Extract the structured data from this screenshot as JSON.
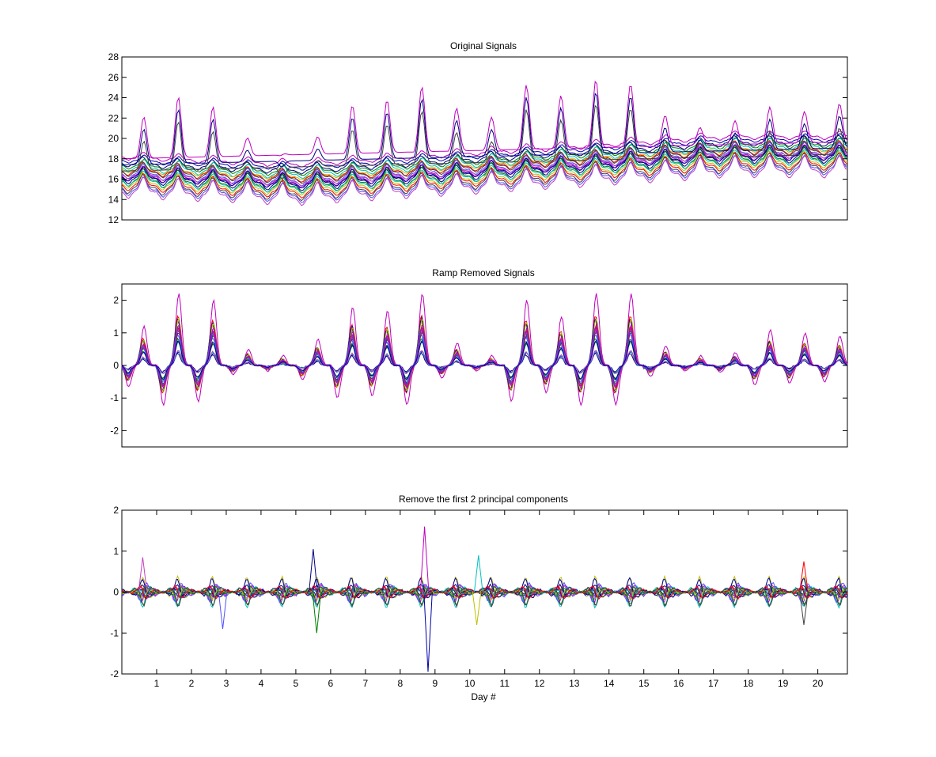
{
  "chart_data": [
    {
      "type": "line",
      "title": "Original Signals",
      "xlabel": "",
      "ylabel": "",
      "xlim": [
        0,
        20.85
      ],
      "ylim": [
        12,
        28
      ],
      "yticks": [
        12,
        14,
        16,
        18,
        20,
        22,
        24,
        26,
        28
      ],
      "xticks": [],
      "grid": false,
      "legend": "none",
      "series_colors": [
        "#bf00bf",
        "#0000aa",
        "#00007f",
        "#008000",
        "#00bfbf",
        "#bfbf00",
        "#ff0000",
        "#404040",
        "#5050ff",
        "#bf40bf"
      ],
      "base_levels": [
        18.2,
        17.9,
        17.6,
        17.4,
        17.2,
        17.0,
        16.9,
        16.8,
        16.6,
        16.5,
        16.4,
        16.3,
        16.2,
        16.0,
        15.9,
        15.7,
        15.5,
        15.3,
        15.1,
        14.9
      ],
      "peak_envelope": {
        "x": [
          0.1,
          0.7,
          1.7,
          2.7,
          3.4,
          4.5,
          5.7,
          6.7,
          7.7,
          8.7,
          9.6,
          10.6,
          11.7,
          12.7,
          13.7,
          14.7,
          15.7,
          16.7,
          17.7,
          18.7,
          19.7,
          20.7
        ],
        "y": [
          19.5,
          22.5,
          24.2,
          23.0,
          20.5,
          18.2,
          20.3,
          23.5,
          23.8,
          25.2,
          23.0,
          22.0,
          25.5,
          24.1,
          25.9,
          25.3,
          22.0,
          21.0,
          21.8,
          23.2,
          22.6,
          23.5
        ]
      }
    },
    {
      "type": "line",
      "title": "Ramp Removed Signals",
      "xlabel": "",
      "ylabel": "",
      "xlim": [
        0,
        20.85
      ],
      "ylim": [
        -2.5,
        2.5
      ],
      "yticks": [
        -2,
        -1,
        0,
        1,
        2
      ],
      "xticks": [],
      "grid": false,
      "legend": "none",
      "series_colors": [
        "#bf00bf",
        "#0000aa",
        "#00007f",
        "#008000",
        "#00bfbf",
        "#bfbf00",
        "#ff0000",
        "#404040",
        "#5050ff",
        "#bf40bf"
      ],
      "cycle_amplitudes": [
        1.2,
        2.2,
        2.0,
        0.5,
        0.3,
        0.8,
        1.8,
        1.7,
        2.2,
        0.7,
        0.3,
        2.0,
        1.5,
        2.2,
        2.2,
        0.6,
        0.3,
        0.4,
        1.1,
        1.0,
        0.9
      ]
    },
    {
      "type": "line",
      "title": "Remove the first 2 principal components",
      "xlabel": "Day #",
      "ylabel": "",
      "xlim": [
        0,
        20.85
      ],
      "ylim": [
        -2,
        2
      ],
      "yticks": [
        -2,
        -1,
        0,
        1,
        2
      ],
      "xticks": [
        1,
        2,
        3,
        4,
        5,
        6,
        7,
        8,
        9,
        10,
        11,
        12,
        13,
        14,
        15,
        16,
        17,
        18,
        19,
        20
      ],
      "grid": false,
      "legend": "none",
      "series_colors": [
        "#bf00bf",
        "#0000aa",
        "#00007f",
        "#008000",
        "#00bfbf",
        "#bfbf00",
        "#ff0000",
        "#404040",
        "#5050ff",
        "#bf40bf"
      ],
      "spikes": [
        {
          "x": 8.7,
          "y": 1.6
        },
        {
          "x": 8.8,
          "y": -1.95
        },
        {
          "x": 5.5,
          "y": 1.05
        },
        {
          "x": 5.6,
          "y": -1.0
        },
        {
          "x": 10.25,
          "y": 0.9
        },
        {
          "x": 10.2,
          "y": -0.8
        },
        {
          "x": 19.6,
          "y": 0.75
        },
        {
          "x": 19.6,
          "y": -0.8
        },
        {
          "x": 2.9,
          "y": -0.9
        },
        {
          "x": 0.6,
          "y": 0.85
        }
      ]
    }
  ]
}
